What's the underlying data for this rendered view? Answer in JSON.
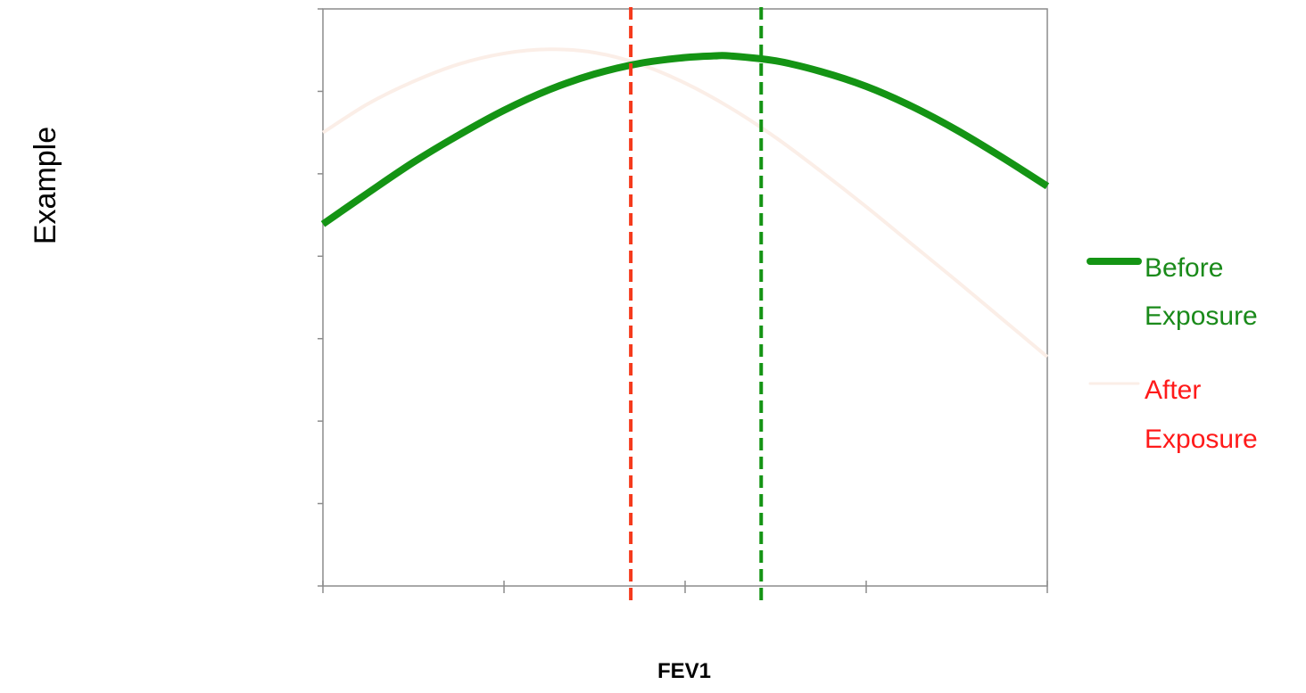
{
  "chart_data": {
    "type": "line",
    "xlabel": "FEV1",
    "ylabel": "Example",
    "x_ticks": 4,
    "y_ticks": 7,
    "xlim": [
      0,
      4
    ],
    "ylim": [
      0,
      7
    ],
    "series": [
      {
        "name": "Before Exposure",
        "color": "#149414",
        "x": [
          0,
          0.25,
          0.5,
          0.75,
          1.0,
          1.25,
          1.5,
          1.75,
          2.0,
          2.16,
          2.25,
          2.5,
          2.75,
          3.0,
          3.25,
          3.5,
          3.75,
          4.0
        ],
        "y": [
          4.39,
          4.77,
          5.14,
          5.47,
          5.77,
          6.02,
          6.21,
          6.34,
          6.41,
          6.43,
          6.43,
          6.37,
          6.24,
          6.06,
          5.82,
          5.53,
          5.2,
          4.85
        ]
      },
      {
        "name": "After Exposure",
        "color": "#fbeee7",
        "x": [
          0,
          0.25,
          0.5,
          0.75,
          1.0,
          1.25,
          1.5,
          1.75,
          2.0,
          2.25,
          2.5,
          2.75,
          3.0,
          3.25,
          3.5,
          3.75,
          4.0
        ],
        "y": [
          5.5,
          5.85,
          6.12,
          6.33,
          6.46,
          6.51,
          6.47,
          6.33,
          6.1,
          5.8,
          5.44,
          5.03,
          4.6,
          4.15,
          3.7,
          3.24,
          2.78
        ]
      }
    ],
    "vlines": [
      {
        "x": 1.7,
        "color": "#f53a1c",
        "style": "dashed"
      },
      {
        "x": 2.42,
        "color": "#149414",
        "style": "dashed"
      }
    ],
    "legend": {
      "position": "right",
      "items": [
        {
          "line1": "Before",
          "line2": "Exposure",
          "color": "#1a8a1a",
          "line_color": "#149414"
        },
        {
          "line1": "After",
          "line2": "Exposure",
          "color": "#ff1a1a",
          "line_color": "#fbeee7"
        }
      ]
    },
    "grid": false
  }
}
